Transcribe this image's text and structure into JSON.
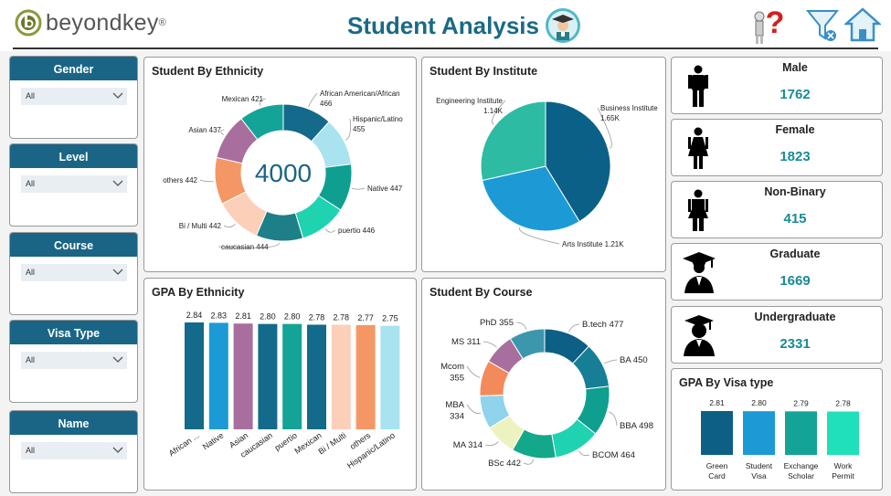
{
  "header": {
    "logo_text": "beyondkey",
    "logo_reg": "®",
    "title": "Student Analysis"
  },
  "filters": [
    {
      "label": "Gender",
      "value": "All"
    },
    {
      "label": "Level",
      "value": "All"
    },
    {
      "label": "Course",
      "value": "All"
    },
    {
      "label": "Visa Type",
      "value": "All"
    },
    {
      "label": "Name",
      "value": "All"
    }
  ],
  "kpis": [
    {
      "label": "Male",
      "value": "1762",
      "icon": "male-icon"
    },
    {
      "label": "Female",
      "value": "1823",
      "icon": "female-icon"
    },
    {
      "label": "Non-Binary",
      "value": "415",
      "icon": "non-binary-icon"
    },
    {
      "label": "Graduate",
      "value": "1669",
      "icon": "graduate-icon"
    },
    {
      "label": "Undergraduate",
      "value": "2331",
      "icon": "undergraduate-icon"
    }
  ],
  "colors": {
    "brand": "#1a6585",
    "kpi_value": "#1a8a96",
    "title": "#1a6a85"
  },
  "chart_data": [
    {
      "id": "ethnicity",
      "type": "pie",
      "title": "Student By Ethnicity",
      "center_label": "4000",
      "categories": [
        "African American/African",
        "Hispanic/Latino",
        "Native",
        "puertio",
        "caucasian",
        "Bi / Multi",
        "others",
        "Asian",
        "Mexican"
      ],
      "values": [
        466,
        455,
        447,
        446,
        444,
        442,
        442,
        437,
        421
      ],
      "colors": [
        "#136a8a",
        "#a9e3ef",
        "#0f9f90",
        "#1fd3b1",
        "#1d7f87",
        "#fccfb9",
        "#f59764",
        "#a86f9e",
        "#14a497"
      ],
      "labels": [
        {
          "lines": [
            "African American/African",
            "466"
          ],
          "anchor": "start"
        },
        {
          "lines": [
            "Hispanic/Latino",
            "455"
          ],
          "anchor": "start"
        },
        {
          "lines": [
            "Native 447"
          ],
          "anchor": "start"
        },
        {
          "lines": [
            "puertio 446"
          ],
          "anchor": "start"
        },
        {
          "lines": [
            "caucasian 444"
          ],
          "anchor": "start"
        },
        {
          "lines": [
            "Bi / Multi 442"
          ],
          "anchor": "end"
        },
        {
          "lines": [
            "others 442"
          ],
          "anchor": "end"
        },
        {
          "lines": [
            "Asian 437"
          ],
          "anchor": "end"
        },
        {
          "lines": [
            "Mexican 421"
          ],
          "anchor": "end"
        }
      ]
    },
    {
      "id": "institute",
      "type": "pie",
      "title": "Student By Institute",
      "categories": [
        "Business Institute",
        "Arts Institute",
        "Engineering Institute"
      ],
      "values": [
        1650,
        1210,
        1140
      ],
      "colors": [
        "#0b6088",
        "#1c9ad6",
        "#2ebba4"
      ],
      "labels": [
        {
          "lines": [
            "Business Institute",
            "1.65K"
          ],
          "anchor": "start"
        },
        {
          "lines": [
            "Arts Institute 1.21K"
          ],
          "anchor": "start"
        },
        {
          "lines": [
            "Engineering Institute",
            "1.14K"
          ],
          "anchor": "end"
        }
      ]
    },
    {
      "id": "gpa-ethnicity",
      "type": "bar",
      "title": "GPA By Ethnicity",
      "categories": [
        "African ...",
        "Native",
        "Asian",
        "caucasian",
        "puertio",
        "Mexican",
        "Bi / Multi",
        "others",
        "Hispanic/Latino"
      ],
      "values": [
        2.84,
        2.83,
        2.81,
        2.8,
        2.8,
        2.78,
        2.78,
        2.77,
        2.75
      ],
      "value_labels": [
        "2.84",
        "2.83",
        "2.81",
        "2.80",
        "2.80",
        "2.78",
        "2.78",
        "2.77",
        "2.75"
      ],
      "colors": [
        "#136a8a",
        "#1c9ad6",
        "#a86f9e",
        "#136a8a",
        "#14a497",
        "#136a8a",
        "#fccfb9",
        "#f59764",
        "#a9e3ef"
      ]
    },
    {
      "id": "course",
      "type": "pie",
      "title": "Student By Course",
      "categories": [
        "B.tech",
        "BA",
        "BBA",
        "BCOM",
        "BSc",
        "MA",
        "MBA",
        "Mcom",
        "MS",
        "PhD"
      ],
      "values": [
        477,
        450,
        498,
        464,
        442,
        314,
        334,
        355,
        311,
        355
      ],
      "colors": [
        "#0d5f85",
        "#167f95",
        "#0f9f8f",
        "#1fd3b1",
        "#14a88a",
        "#eef2c0",
        "#8fd3ec",
        "#f38a5a",
        "#a86f9e",
        "#3c97ad"
      ],
      "labels": [
        {
          "lines": [
            "B.tech 477"
          ],
          "anchor": "start"
        },
        {
          "lines": [
            "BA 450"
          ],
          "anchor": "start"
        },
        {
          "lines": [
            "BBA 498"
          ],
          "anchor": "start"
        },
        {
          "lines": [
            "BCOM 464"
          ],
          "anchor": "start"
        },
        {
          "lines": [
            "BSc 442"
          ],
          "anchor": "end"
        },
        {
          "lines": [
            "MA 314"
          ],
          "anchor": "end"
        },
        {
          "lines": [
            "MBA",
            "334"
          ],
          "anchor": "end"
        },
        {
          "lines": [
            "Mcom",
            "355"
          ],
          "anchor": "end"
        },
        {
          "lines": [
            "MS 311"
          ],
          "anchor": "end"
        },
        {
          "lines": [
            "PhD 355"
          ],
          "anchor": "end"
        }
      ]
    },
    {
      "id": "gpa-visa",
      "type": "bar",
      "title": "GPA By Visa type",
      "categories": [
        "Green Card",
        "Student Visa",
        "Exchange Scholar",
        "Work Permit"
      ],
      "category_lines": [
        [
          "Green",
          "Card"
        ],
        [
          "Student",
          "Visa"
        ],
        [
          "Exchange",
          "Scholar"
        ],
        [
          "Work",
          "Permit"
        ]
      ],
      "values": [
        2.81,
        2.8,
        2.79,
        2.78
      ],
      "value_labels": [
        "2.81",
        "2.80",
        "2.79",
        "2.78"
      ],
      "colors": [
        "#0d5f85",
        "#1c9ad6",
        "#14a497",
        "#1fe0b8"
      ]
    }
  ]
}
